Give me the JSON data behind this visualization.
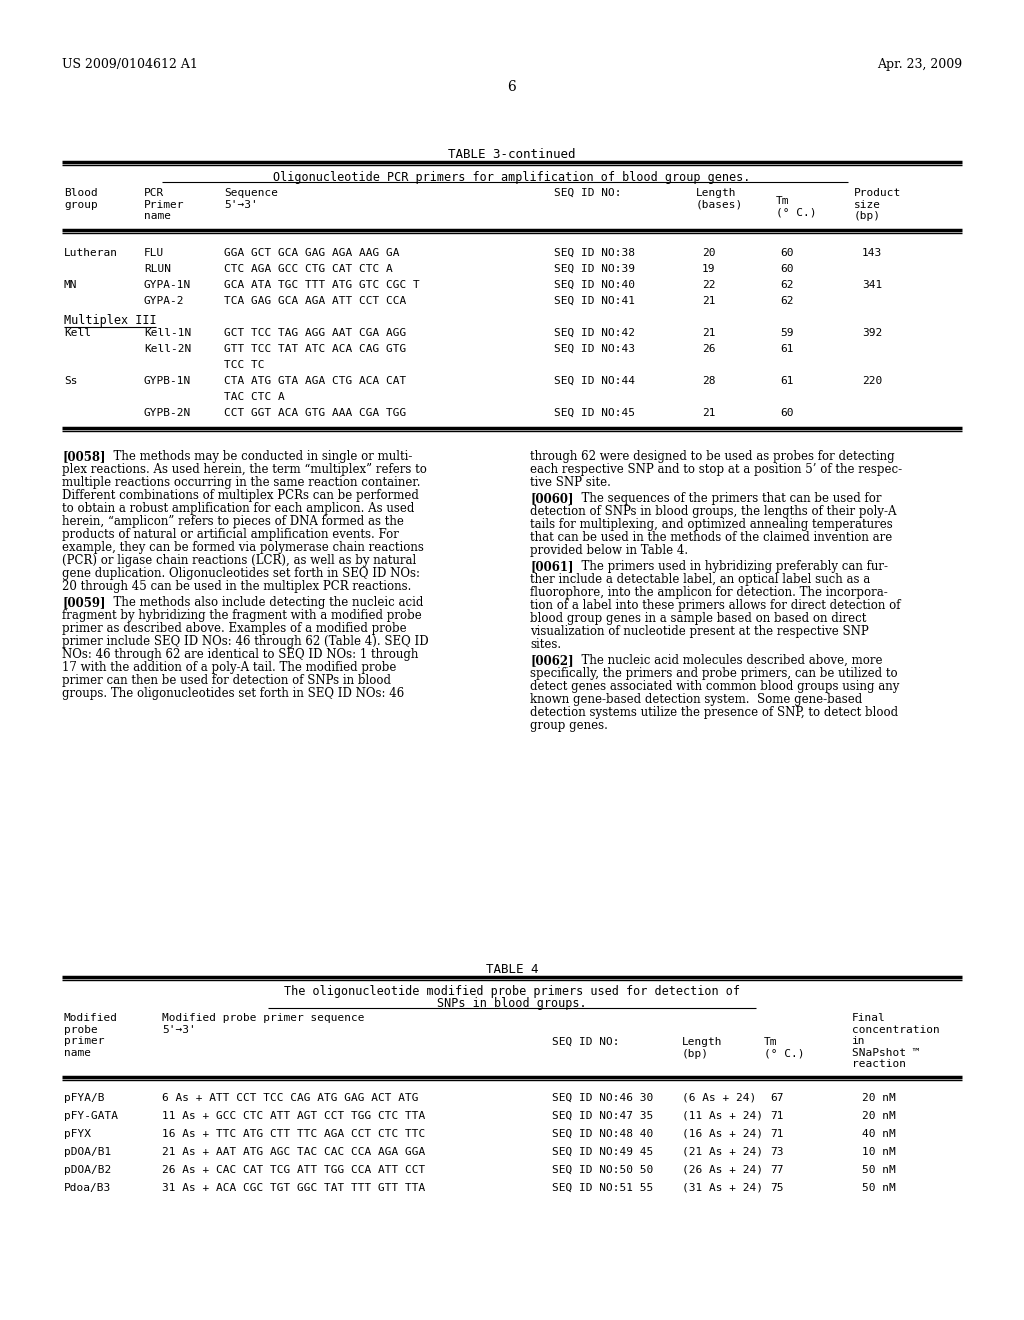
{
  "background_color": "#ffffff",
  "header_left": "US 2009/0104612 A1",
  "header_right": "Apr. 23, 2009",
  "page_number": "6"
}
